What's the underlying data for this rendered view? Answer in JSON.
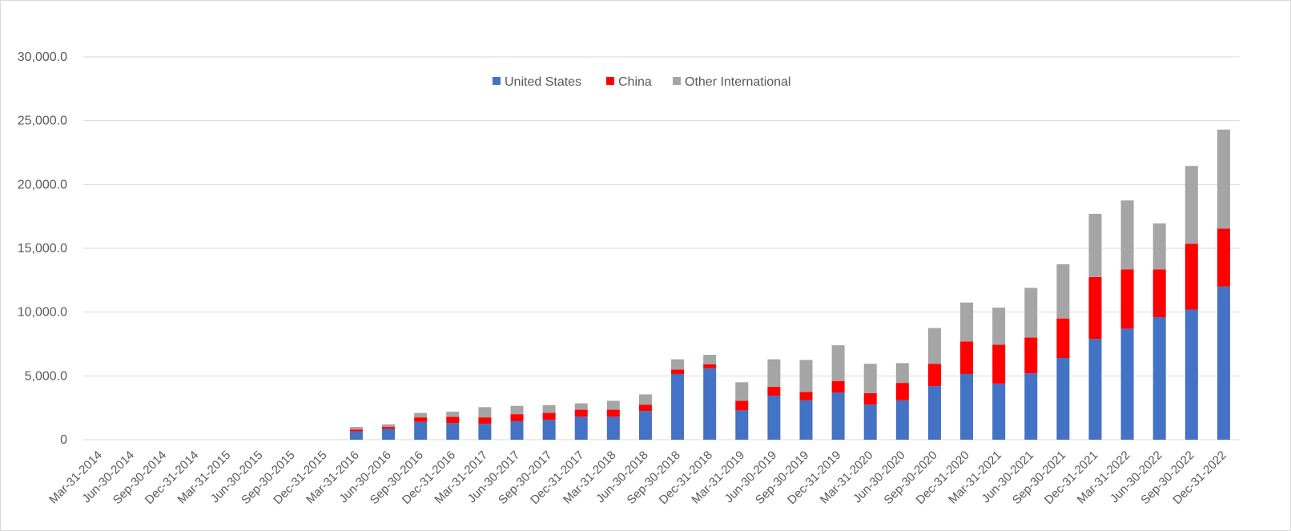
{
  "chart_data": {
    "type": "bar",
    "stacked": true,
    "title": "",
    "xlabel": "",
    "ylabel": "",
    "ylim": [
      0,
      30000
    ],
    "yticks": [
      "0",
      "5,000.0",
      "10,000.0",
      "15,000.0",
      "20,000.0",
      "25,000.0",
      "30,000.0"
    ],
    "ytick_values": [
      0,
      5000,
      10000,
      15000,
      20000,
      25000,
      30000
    ],
    "grid": true,
    "legend_position": "top-center",
    "categories": [
      "Mar-31-2014",
      "Jun-30-2014",
      "Sep-30-2014",
      "Dec-31-2014",
      "Mar-31-2015",
      "Jun-30-2015",
      "Sep-30-2015",
      "Dec-31-2015",
      "Mar-31-2016",
      "Jun-30-2016",
      "Sep-30-2016",
      "Dec-31-2016",
      "Mar-31-2017",
      "Jun-30-2017",
      "Sep-30-2017",
      "Dec-31-2017",
      "Mar-31-2018",
      "Jun-30-2018",
      "Sep-30-2018",
      "Dec-31-2018",
      "Mar-31-2019",
      "Jun-30-2019",
      "Sep-30-2019",
      "Dec-31-2019",
      "Mar-31-2020",
      "Jun-30-2020",
      "Sep-30-2020",
      "Dec-31-2020",
      "Mar-31-2021",
      "Jun-30-2021",
      "Sep-30-2021",
      "Dec-31-2021",
      "Mar-31-2022",
      "Jun-30-2022",
      "Sep-30-2022",
      "Dec-31-2022"
    ],
    "series": [
      {
        "name": "United States",
        "color": "#4472c4",
        "values": [
          0,
          0,
          0,
          0,
          0,
          0,
          0,
          0,
          650,
          850,
          1400,
          1300,
          1250,
          1450,
          1550,
          1800,
          1800,
          2250,
          5150,
          5600,
          2300,
          3450,
          3100,
          3700,
          2750,
          3100,
          4200,
          5150,
          4400,
          5200,
          6400,
          7900,
          8700,
          9600,
          10200,
          12000
        ]
      },
      {
        "name": "China",
        "color": "#ff0000",
        "values": [
          0,
          0,
          0,
          0,
          0,
          0,
          0,
          0,
          150,
          150,
          350,
          500,
          500,
          550,
          550,
          550,
          550,
          500,
          350,
          300,
          750,
          700,
          650,
          900,
          900,
          1350,
          1750,
          2550,
          3050,
          2800,
          3100,
          4850,
          4650,
          3750,
          5150,
          4550
        ]
      },
      {
        "name": "Other International",
        "color": "#a5a5a5",
        "values": [
          0,
          0,
          0,
          0,
          0,
          0,
          0,
          0,
          200,
          200,
          350,
          400,
          800,
          650,
          600,
          500,
          700,
          800,
          800,
          750,
          1450,
          2150,
          2500,
          2800,
          2300,
          1550,
          2800,
          3050,
          2900,
          3900,
          4250,
          4950,
          5400,
          3600,
          6100,
          7750
        ]
      }
    ]
  }
}
